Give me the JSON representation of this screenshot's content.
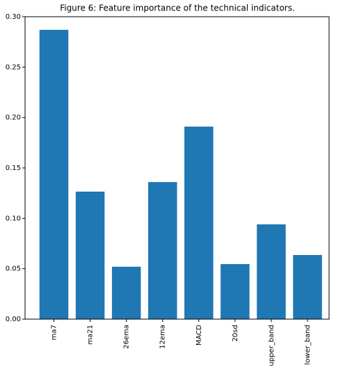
{
  "chart_data": {
    "type": "bar",
    "title": "Figure 6: Feature importance of the technical indicators.",
    "categories": [
      "ma7",
      "ma21",
      "26ema",
      "12ema",
      "MACD",
      "20sd",
      "upper_band",
      "lower_band"
    ],
    "values": [
      0.287,
      0.1265,
      0.052,
      0.136,
      0.191,
      0.0546,
      0.094,
      0.0636
    ],
    "color": "#1f77b4",
    "ylim": [
      0,
      0.3
    ],
    "yticks": [
      {
        "value": 0,
        "label": "0.00"
      },
      {
        "value": 0.05,
        "label": "0.05"
      },
      {
        "value": 0.1,
        "label": "0.10"
      },
      {
        "value": 0.15,
        "label": "0.15"
      },
      {
        "value": 0.2,
        "label": "0.20"
      },
      {
        "value": 0.25,
        "label": "0.25"
      },
      {
        "value": 0.3,
        "label": "0.30"
      }
    ],
    "grid": false
  }
}
